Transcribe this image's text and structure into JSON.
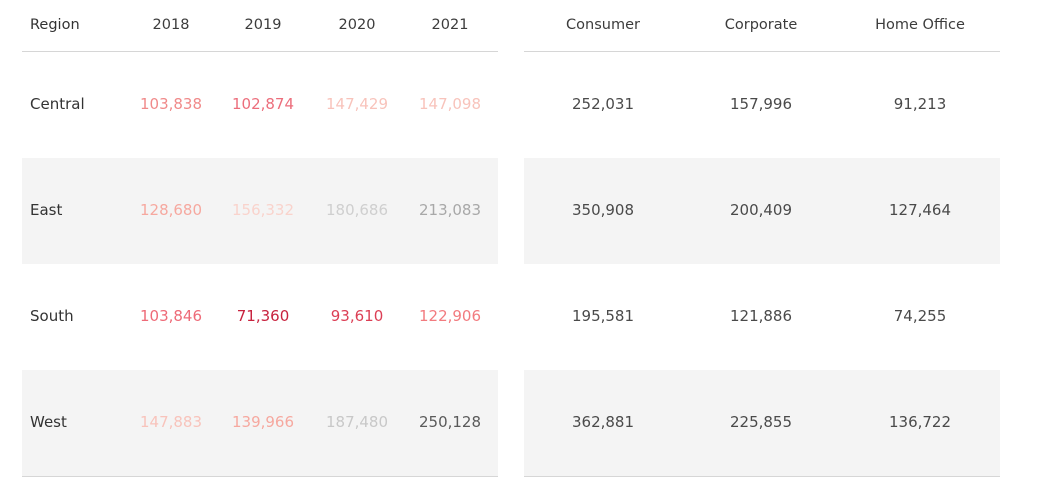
{
  "chart_data": {
    "type": "table",
    "tables": [
      {
        "columns": [
          "Region",
          "2018",
          "2019",
          "2020",
          "2021"
        ],
        "rows": [
          {
            "region": "Central",
            "values": [
              "103,838",
              "102,874",
              "147,429",
              "147,098"
            ],
            "colors": [
              "#f08a8a",
              "#ec6e7c",
              "#f8c3bb",
              "#f8c3bb"
            ]
          },
          {
            "region": "East",
            "values": [
              "128,680",
              "156,332",
              "180,686",
              "213,083"
            ],
            "colors": [
              "#f6a89f",
              "#f9d3cc",
              "#cfcfcf",
              "#a8a8a8"
            ]
          },
          {
            "region": "South",
            "values": [
              "103,846",
              "71,360",
              "93,610",
              "122,906"
            ],
            "colors": [
              "#ee6b78",
              "#c8233f",
              "#dc3f55",
              "#f27b7f"
            ]
          },
          {
            "region": "West",
            "values": [
              "147,883",
              "139,966",
              "187,480",
              "250,128"
            ],
            "colors": [
              "#f8c3bb",
              "#f6a89f",
              "#c8c8c8",
              "#5a5a5a"
            ]
          }
        ]
      },
      {
        "columns": [
          "Consumer",
          "Corporate",
          "Home Office"
        ],
        "rows": [
          {
            "values": [
              "252,031",
              "157,996",
              "91,213"
            ]
          },
          {
            "values": [
              "350,908",
              "200,409",
              "127,464"
            ]
          },
          {
            "values": [
              "195,581",
              "121,886",
              "74,255"
            ]
          },
          {
            "values": [
              "362,881",
              "225,855",
              "136,722"
            ]
          }
        ]
      }
    ]
  },
  "colors": {
    "row_shade": "#f4f4f4",
    "divider": "#d6d6d6",
    "text": "#4a4a4a"
  }
}
